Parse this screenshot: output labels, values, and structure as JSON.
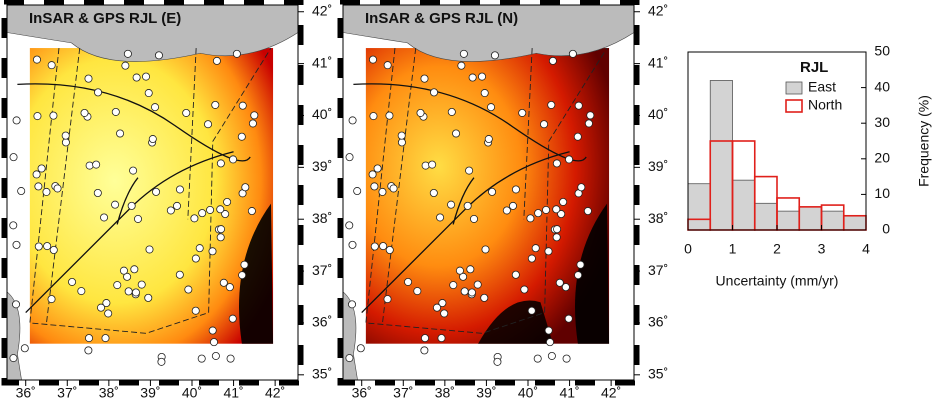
{
  "chart_data": [
    {
      "type": "map",
      "title": "InSAR & GPS RJL (E)",
      "xlim": [
        35.55,
        42.55
      ],
      "ylim": [
        34.9,
        42.13
      ],
      "xticks": [
        {
          "value": 36,
          "label": "36˚"
        },
        {
          "value": 37,
          "label": "37˚"
        },
        {
          "value": 38,
          "label": "38˚"
        },
        {
          "value": 39,
          "label": "39˚"
        },
        {
          "value": 40,
          "label": "40˚"
        },
        {
          "value": 41,
          "label": "41˚"
        },
        {
          "value": 42,
          "label": "42˚"
        }
      ],
      "yticks": [
        {
          "value": 35,
          "label": "35˚"
        },
        {
          "value": 36,
          "label": "36˚"
        },
        {
          "value": 37,
          "label": "37˚"
        },
        {
          "value": 38,
          "label": "38˚"
        },
        {
          "value": 39,
          "label": "39˚"
        },
        {
          "value": 40,
          "label": "40˚"
        },
        {
          "value": 41,
          "label": "41˚"
        },
        {
          "value": 42,
          "label": "42˚"
        }
      ]
    },
    {
      "type": "map",
      "title": "InSAR & GPS RJL (N)",
      "xlim": [
        35.55,
        42.55
      ],
      "ylim": [
        34.9,
        42.13
      ],
      "xticks": [
        {
          "value": 36,
          "label": "36˚"
        },
        {
          "value": 37,
          "label": "37˚"
        },
        {
          "value": 38,
          "label": "38˚"
        },
        {
          "value": 39,
          "label": "39˚"
        },
        {
          "value": 40,
          "label": "40˚"
        },
        {
          "value": 41,
          "label": "41˚"
        },
        {
          "value": 42,
          "label": "42˚"
        }
      ],
      "yticks": [
        {
          "value": 35,
          "label": "35˚"
        },
        {
          "value": 36,
          "label": "36˚"
        },
        {
          "value": 37,
          "label": "37˚"
        },
        {
          "value": 38,
          "label": "38˚"
        },
        {
          "value": 39,
          "label": "39˚"
        },
        {
          "value": 40,
          "label": "40˚"
        },
        {
          "value": 41,
          "label": "41˚"
        },
        {
          "value": 42,
          "label": "42˚"
        }
      ]
    },
    {
      "type": "histogram",
      "x_label": "Uncertainty (mm/yr)",
      "y_label": "Frequency (%)",
      "legend_title": "RJL",
      "legend": "upper right",
      "bins": [
        0,
        0.5,
        1,
        1.5,
        2,
        2.5,
        3,
        3.5,
        4
      ],
      "series": [
        {
          "name": "East",
          "color": "#d3d3d3",
          "filled": true,
          "values": [
            13,
            42,
            14,
            7.5,
            5.3,
            6.5,
            5.3,
            4
          ]
        },
        {
          "name": "North",
          "color": "#e0201b",
          "filled": false,
          "values": [
            3,
            25,
            25,
            15,
            9,
            6.5,
            7,
            4
          ]
        }
      ],
      "xlim": [
        0,
        4
      ],
      "xticks": [
        0,
        1,
        2,
        3,
        4
      ],
      "ylim": [
        0,
        50
      ],
      "yticks": [
        0,
        10,
        20,
        30,
        40,
        50
      ]
    }
  ]
}
